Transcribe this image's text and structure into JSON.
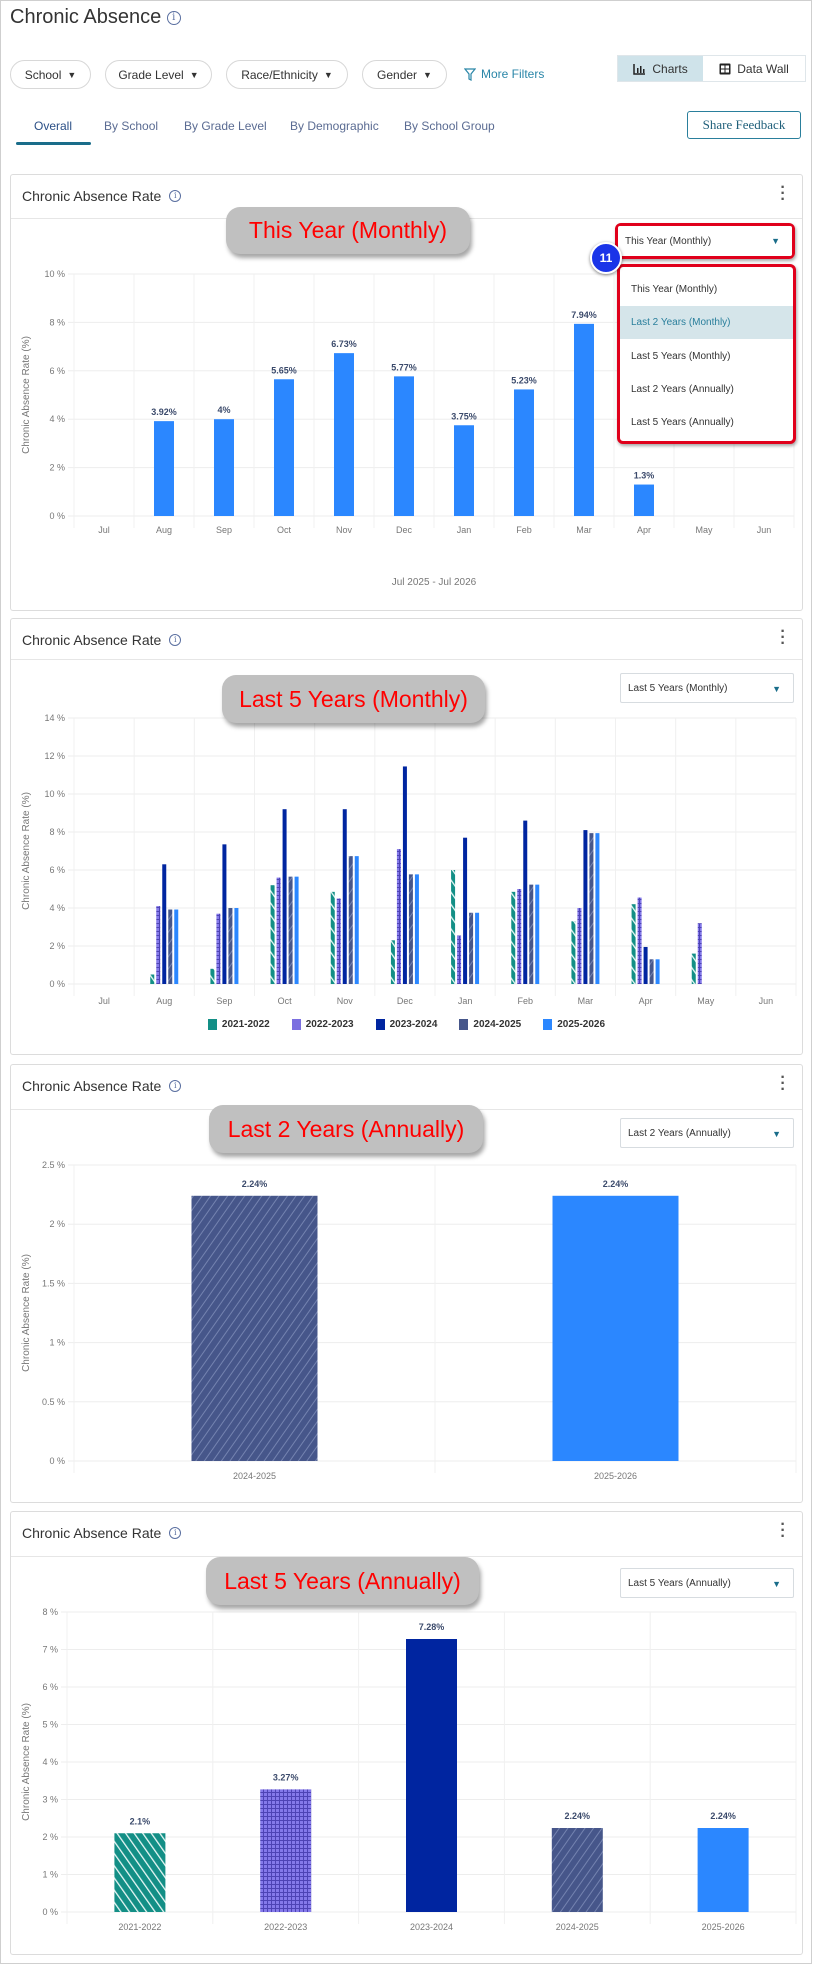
{
  "header": {
    "title": "Chronic Absence",
    "info_icon": "info-icon"
  },
  "filters": [
    {
      "label": "School"
    },
    {
      "label": "Grade Level"
    },
    {
      "label": "Race/Ethnicity"
    },
    {
      "label": "Gender"
    }
  ],
  "more_filters": "More Filters",
  "view_toggle": {
    "charts": "Charts",
    "data_wall": "Data Wall",
    "active": "Charts"
  },
  "tabs": [
    {
      "label": "Overall",
      "active": true
    },
    {
      "label": "By School"
    },
    {
      "label": "By Grade Level"
    },
    {
      "label": "By Demographic"
    },
    {
      "label": "By School Group"
    }
  ],
  "share_feedback": "Share Feedback",
  "annotation_badge": "11",
  "dropdown_options": [
    "This Year (Monthly)",
    "Last 2 Years (Monthly)",
    "Last 5 Years (Monthly)",
    "Last 2 Years (Annually)",
    "Last 5 Years (Annually)"
  ],
  "highlighted_option": "Last 2 Years (Monthly)",
  "cards": [
    {
      "title": "Chronic Absence Rate",
      "annotation": "This Year (Monthly)",
      "selected": "This Year (Monthly)"
    },
    {
      "title": "Chronic Absence Rate",
      "annotation": "Last 5 Years (Monthly)",
      "selected": "Last 5 Years (Monthly)"
    },
    {
      "title": "Chronic Absence Rate",
      "annotation": "Last 2 Years (Annually)",
      "selected": "Last 2 Years (Annually)"
    },
    {
      "title": "Chronic Absence Rate",
      "annotation": "Last 5 Years (Annually)",
      "selected": "Last 5 Years (Annually)"
    }
  ],
  "colors": {
    "2021-2022": "#138f86",
    "2022-2023": "#7b6fe0",
    "2023-2024": "#0025a0",
    "2024-2025": "#46568a",
    "2025-2026": "#2b87ff",
    "accent": "#1a6d8a",
    "annotation_red": "#e0001b"
  },
  "chart_data": [
    {
      "type": "bar",
      "ylabel": "Chronic Absence Rate (%)",
      "xlabel": "Jul 2025 - Jul 2026",
      "ylim": [
        0,
        10
      ],
      "yticks": [
        0,
        2,
        4,
        6,
        8,
        10
      ],
      "grid": true,
      "categories": [
        "Jul",
        "Aug",
        "Sep",
        "Oct",
        "Nov",
        "Dec",
        "Jan",
        "Feb",
        "Mar",
        "Apr",
        "May",
        "Jun"
      ],
      "data_labels": true,
      "series": [
        {
          "key": "2025-2026",
          "values": [
            null,
            3.92,
            4,
            5.65,
            6.73,
            5.77,
            3.75,
            5.23,
            7.94,
            1.3,
            null,
            null
          ]
        }
      ]
    },
    {
      "type": "bar",
      "ylabel": "Chronic Absence Rate (%)",
      "ylim": [
        0,
        14
      ],
      "yticks": [
        0,
        2,
        4,
        6,
        8,
        10,
        12,
        14
      ],
      "grid": true,
      "legend": "bottom",
      "categories": [
        "Jul",
        "Aug",
        "Sep",
        "Oct",
        "Nov",
        "Dec",
        "Jan",
        "Feb",
        "Mar",
        "Apr",
        "May",
        "Jun"
      ],
      "data_labels": false,
      "series": [
        {
          "name": "2021-2022",
          "key": "2021-2022",
          "values": [
            null,
            0.5,
            0.8,
            5.2,
            4.85,
            2.3,
            6.0,
            4.85,
            3.3,
            4.2,
            1.6,
            null
          ]
        },
        {
          "name": "2022-2023",
          "key": "2022-2023",
          "values": [
            null,
            4.1,
            3.7,
            5.6,
            4.5,
            7.1,
            2.55,
            5.0,
            4.0,
            4.55,
            3.2,
            null
          ]
        },
        {
          "name": "2023-2024",
          "key": "2023-2024",
          "values": [
            null,
            6.3,
            7.35,
            9.2,
            9.2,
            11.45,
            7.7,
            8.6,
            8.1,
            1.95,
            null,
            null
          ]
        },
        {
          "name": "2024-2025",
          "key": "2024-2025",
          "values": [
            null,
            3.92,
            4,
            5.65,
            6.73,
            5.77,
            3.75,
            5.23,
            7.94,
            1.3,
            null,
            null
          ]
        },
        {
          "name": "2025-2026",
          "key": "2025-2026",
          "values": [
            null,
            3.92,
            4,
            5.65,
            6.73,
            5.77,
            3.75,
            5.23,
            7.94,
            1.3,
            null,
            null
          ]
        }
      ]
    },
    {
      "type": "bar",
      "ylabel": "Chronic Absence Rate (%)",
      "ylim": [
        0,
        2.5
      ],
      "yticks": [
        0,
        0.5,
        1,
        1.5,
        2,
        2.5
      ],
      "grid": true,
      "categories": [
        "2024-2025",
        "2025-2026"
      ],
      "data_labels": true,
      "values": [
        2.24,
        2.24
      ]
    },
    {
      "type": "bar",
      "ylabel": "Chronic Absence Rate (%)",
      "ylim": [
        0,
        8
      ],
      "yticks": [
        0,
        1,
        2,
        3,
        4,
        5,
        6,
        7,
        8
      ],
      "grid": true,
      "categories": [
        "2021-2022",
        "2022-2023",
        "2023-2024",
        "2024-2025",
        "2025-2026"
      ],
      "data_labels": true,
      "values": [
        2.1,
        3.27,
        7.28,
        2.24,
        2.24
      ]
    }
  ]
}
